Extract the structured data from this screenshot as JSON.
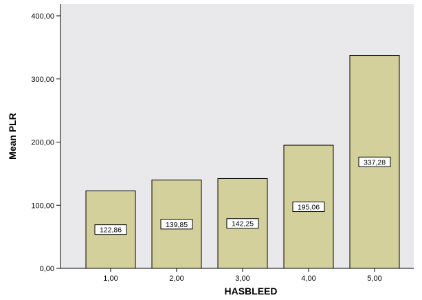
{
  "chart_data": {
    "type": "bar",
    "categories": [
      "1,00",
      "2,00",
      "3,00",
      "4,00",
      "5,00"
    ],
    "values": [
      122.86,
      139.85,
      142.25,
      195.06,
      337.28
    ],
    "data_labels": [
      "122,86",
      "139,85",
      "142,25",
      "195,06",
      "337,28"
    ],
    "xlabel": "HASBLEED",
    "ylabel": "Mean PLR",
    "ylim": [
      0,
      400
    ],
    "yticks": [
      0,
      100,
      200,
      300,
      400
    ],
    "ytick_labels": [
      "0,00",
      "100,00",
      "200,00",
      "300,00",
      "400,00"
    ],
    "grid": false,
    "colors": {
      "plot_background": "#e9e8ea",
      "bar_fill": "#d4d09c",
      "bar_stroke": "#000000",
      "label_box_fill": "#ffffff"
    }
  }
}
